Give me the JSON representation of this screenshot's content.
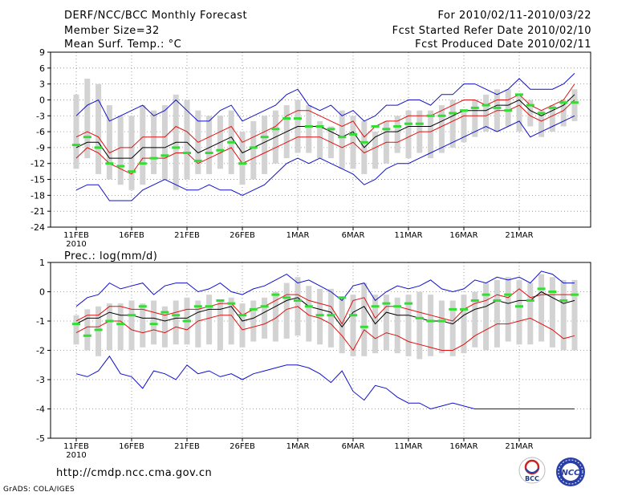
{
  "header": {
    "title": "DERF/NCC/BCC Monthly Forecast",
    "member_size": "Member Size=32",
    "variable": "Mean Surf. Temp.: °C",
    "period": "For 2010/02/11-2010/03/22",
    "started": "Fcst Started Refer Date 2010/02/10",
    "produced": "Fcst Produced Date 2010/02/11"
  },
  "colors": {
    "box": "#d3d3d3",
    "median": "#000000",
    "quartile": "#e01010",
    "extreme": "#1010cc",
    "obs": "#33dd33",
    "grid": "#888888"
  },
  "footer": {
    "url": "http://cmdp.ncc.cma.gov.cn",
    "grads": "GrADS: COLA/IGES",
    "logo_bcc": "BCC",
    "logo_ncc": "NCC"
  },
  "chart_data": [
    {
      "type": "box",
      "title": "Mean Surf. Temp.: °C",
      "ylim": [
        -24,
        9
      ],
      "yticks": [
        9,
        6,
        3,
        0,
        -3,
        -6,
        -9,
        -12,
        -15,
        -18,
        -21,
        -24
      ],
      "xticks": [
        "11FEB",
        "16FEB",
        "21FEB",
        "26FEB",
        "1MAR",
        "6MAR",
        "11MAR",
        "16MAR",
        "21MAR"
      ],
      "xticks_year": "2010",
      "box_hi": [
        1,
        4,
        3,
        -1,
        -3,
        -3,
        -1,
        -2,
        -1,
        1,
        0,
        -2,
        -3,
        -3,
        -2,
        -6,
        -4,
        -3,
        -2,
        -1,
        0,
        -1,
        -4,
        -5,
        -2,
        -3,
        -4,
        -6,
        -4,
        -3,
        -2,
        -2,
        -2,
        -1,
        0,
        -2,
        0,
        1,
        2,
        2,
        1,
        0,
        -2,
        -1,
        0,
        2
      ],
      "box_lo": [
        -13,
        -11,
        -14,
        -15,
        -16,
        -17,
        -16,
        -14,
        -15,
        -17,
        -15,
        -14,
        -14,
        -13,
        -14,
        -16,
        -15,
        -14,
        -12,
        -11,
        -10,
        -10,
        -11,
        -11,
        -13,
        -13,
        -14,
        -13,
        -12,
        -10,
        -11,
        -10,
        -11,
        -10,
        -9,
        -8,
        -7,
        -6,
        -6,
        -5,
        -6,
        -5,
        -7,
        -6,
        -5,
        -4
      ],
      "max": [
        -3,
        -1,
        0,
        -4,
        -3,
        -2,
        -1,
        -3,
        -2,
        0,
        -2,
        -4,
        -4,
        -2,
        -1,
        -4,
        -3,
        -2,
        -1,
        1,
        2,
        -1,
        -2,
        -1,
        -3,
        -2,
        -4,
        -3,
        -1,
        -1,
        0,
        0,
        -1,
        1,
        1,
        3,
        3,
        2,
        1,
        2,
        4,
        2,
        2,
        2,
        3,
        5
      ],
      "q_hi": [
        -7,
        -6,
        -7,
        -10,
        -9,
        -9,
        -7,
        -7,
        -7,
        -5,
        -6,
        -8,
        -7,
        -6,
        -5,
        -8,
        -7,
        -6,
        -5,
        -3,
        -2,
        -2,
        -3,
        -4,
        -5,
        -4,
        -7,
        -5,
        -4,
        -4,
        -3,
        -3,
        -3,
        -2,
        -1,
        0,
        0,
        -1,
        0,
        0,
        1,
        -1,
        -2,
        -1,
        0,
        3
      ],
      "median": [
        -9,
        -8,
        -8,
        -11,
        -11,
        -11,
        -9,
        -9,
        -9,
        -8,
        -8,
        -10,
        -9,
        -8,
        -7,
        -10,
        -9,
        -8,
        -7,
        -6,
        -5,
        -5,
        -5,
        -6,
        -7,
        -6,
        -9,
        -7,
        -6,
        -6,
        -5,
        -5,
        -5,
        -4,
        -3,
        -2,
        -2,
        -2,
        -1,
        -1,
        0,
        -2,
        -3,
        -2,
        -1,
        1
      ],
      "q_lo": [
        -11,
        -9,
        -10,
        -12,
        -13,
        -14,
        -11,
        -11,
        -11,
        -10,
        -10,
        -12,
        -11,
        -10,
        -9,
        -12,
        -11,
        -10,
        -9,
        -8,
        -7,
        -7,
        -7,
        -8,
        -9,
        -8,
        -10,
        -9,
        -8,
        -8,
        -7,
        -6,
        -6,
        -5,
        -4,
        -3,
        -3,
        -3,
        -2,
        -2,
        -1,
        -3,
        -4,
        -3,
        -2,
        0
      ],
      "min": [
        -17,
        -16,
        -16,
        -19,
        -19,
        -19,
        -17,
        -16,
        -15,
        -16,
        -17,
        -17,
        -16,
        -17,
        -17,
        -18,
        -17,
        -16,
        -14,
        -12,
        -11,
        -12,
        -11,
        -12,
        -13,
        -14,
        -16,
        -15,
        -13,
        -12,
        -12,
        -11,
        -10,
        -9,
        -8,
        -7,
        -6,
        -5,
        -6,
        -5,
        -4,
        -7,
        -6,
        -5,
        -4,
        -3
      ],
      "obs": [
        -8.5,
        -7,
        -9,
        -12,
        -12.5,
        -13.5,
        -12,
        -11,
        -10.5,
        -9,
        -10,
        -11.5,
        -10,
        -9.5,
        -8,
        -12,
        -9,
        -7,
        -5.5,
        -3.5,
        -3.5,
        -5,
        -5,
        -5.5,
        -7,
        -6.5,
        -8,
        -5,
        -5.5,
        -5,
        -4.5,
        -4.5,
        -3,
        -3,
        -2.5,
        -2,
        -1.5,
        -1,
        -1.5,
        -2,
        1,
        -1,
        -2.5,
        -1.5,
        -0.5,
        -0.5
      ]
    },
    {
      "type": "box",
      "title": "Prec.: log(mm/d)",
      "ylim": [
        -5,
        1
      ],
      "yticks": [
        1,
        0,
        -1,
        -2,
        -3,
        -4,
        -5
      ],
      "xticks": [
        "11FEB",
        "16FEB",
        "21FEB",
        "26FEB",
        "1MAR",
        "6MAR",
        "11MAR",
        "16MAR",
        "21MAR"
      ],
      "xticks_year": "2010",
      "box_hi": [
        -0.8,
        -0.6,
        -0.5,
        -0.4,
        -0.4,
        -0.3,
        -0.4,
        -0.3,
        -0.5,
        -0.3,
        -0.2,
        -0.3,
        -0.1,
        -0.3,
        -0.2,
        -0.4,
        -0.3,
        -0.2,
        0,
        0.3,
        0.5,
        0.2,
        0.1,
        0.1,
        -0.2,
        -0.1,
        0.3,
        -0.1,
        -0.1,
        -0.2,
        -0.1,
        0,
        -0.1,
        -0.3,
        -0.3,
        -0.1,
        0,
        0.3,
        0.4,
        0.5,
        0.4,
        0.3,
        0.6,
        0.5,
        0.4,
        0.4
      ],
      "box_lo": [
        -1.8,
        -2,
        -2.2,
        -2,
        -2,
        -2,
        -1.9,
        -1.8,
        -1.9,
        -1.8,
        -1.8,
        -1.9,
        -1.8,
        -2,
        -1.8,
        -1.9,
        -1.7,
        -1.6,
        -1.7,
        -1.6,
        -1.5,
        -1.7,
        -1.8,
        -1.9,
        -2.1,
        -2.2,
        -2.2,
        -2.1,
        -2,
        -2.1,
        -2.2,
        -2.3,
        -2.2,
        -2.1,
        -2.2,
        -2.1,
        -1.9,
        -2,
        -1.9,
        -1.7,
        -1.8,
        -1.8,
        -1.7,
        -1.9,
        -2,
        -2
      ],
      "max": [
        -0.5,
        -0.2,
        -0.1,
        0.3,
        0.1,
        0.2,
        0.3,
        -0.1,
        0.2,
        0.3,
        0.3,
        0,
        0.1,
        0.3,
        0,
        -0.1,
        0.1,
        0.2,
        0.4,
        0.6,
        0.3,
        0.4,
        0.2,
        0,
        -0.3,
        0.2,
        0.3,
        -0.3,
        0,
        0.2,
        0.1,
        0.2,
        0.4,
        0.1,
        0,
        0.1,
        0.4,
        0.3,
        0.5,
        0.4,
        0.5,
        0.3,
        0.7,
        0.6,
        0.3,
        0.3
      ],
      "q_hi": [
        -1,
        -0.8,
        -0.8,
        -0.5,
        -0.5,
        -0.6,
        -0.6,
        -0.7,
        -0.8,
        -0.7,
        -0.6,
        -0.6,
        -0.5,
        -0.4,
        -0.4,
        -0.8,
        -0.6,
        -0.5,
        -0.3,
        -0.1,
        -0.1,
        -0.3,
        -0.4,
        -0.5,
        -1.1,
        -0.3,
        -0.2,
        -0.9,
        -0.5,
        -0.5,
        -0.6,
        -0.7,
        -0.8,
        -0.9,
        -1,
        -0.6,
        -0.4,
        -0.3,
        -0.1,
        -0.2,
        0.1,
        -0.2,
        -0.1,
        -0.1,
        -0.1,
        -0.1
      ],
      "median": [
        -1.1,
        -0.9,
        -0.9,
        -0.7,
        -0.8,
        -0.8,
        -0.9,
        -0.9,
        -1,
        -0.9,
        -0.9,
        -0.7,
        -0.6,
        -0.6,
        -0.5,
        -1,
        -0.9,
        -0.7,
        -0.5,
        -0.3,
        -0.2,
        -0.5,
        -0.6,
        -0.7,
        -1.2,
        -0.7,
        -0.5,
        -1.1,
        -0.7,
        -0.8,
        -0.8,
        -0.9,
        -1,
        -1,
        -1.1,
        -0.8,
        -0.6,
        -0.5,
        -0.3,
        -0.4,
        -0.3,
        -0.3,
        0,
        -0.2,
        -0.4,
        -0.3
      ],
      "q_lo": [
        -1.4,
        -1.2,
        -1.2,
        -1,
        -1,
        -1.3,
        -1.4,
        -1.3,
        -1.4,
        -1.2,
        -1.3,
        -1,
        -0.9,
        -0.8,
        -0.8,
        -1.3,
        -1.2,
        -1.1,
        -0.9,
        -0.6,
        -0.5,
        -0.8,
        -0.9,
        -1.1,
        -1.5,
        -2,
        -1.3,
        -1.6,
        -1.4,
        -1.5,
        -1.7,
        -1.8,
        -1.9,
        -2,
        -2,
        -1.8,
        -1.5,
        -1.3,
        -1.1,
        -1.1,
        -1,
        -0.9,
        -1.1,
        -1.3,
        -1.6,
        -1.5
      ],
      "min": [
        -2.8,
        -2.9,
        -2.7,
        -2.2,
        -2.8,
        -2.9,
        -3.3,
        -2.7,
        -2.8,
        -3,
        -2.5,
        -2.8,
        -2.7,
        -2.9,
        -2.8,
        -3,
        -2.8,
        -2.7,
        -2.6,
        -2.5,
        -2.5,
        -2.6,
        -2.8,
        -3.1,
        -2.7,
        -3.4,
        -3.7,
        -3.2,
        -3.3,
        -3.6,
        -3.8,
        -3.8,
        -4,
        -3.9,
        -3.8,
        -3.9,
        -4,
        -4,
        -4,
        -4,
        -4,
        -4,
        -4,
        -4,
        -4,
        -4
      ],
      "obs": [
        -1.1,
        -1.5,
        -1.3,
        -1,
        -1.1,
        -0.8,
        -0.5,
        -1.1,
        -0.7,
        -0.8,
        -1,
        -0.5,
        -0.5,
        -0.3,
        -0.4,
        -0.8,
        -0.6,
        -0.5,
        -0.1,
        -0.2,
        -0.3,
        -0.5,
        -0.8,
        -0.8,
        -0.2,
        -0.8,
        -1.2,
        -0.5,
        -0.4,
        -0.5,
        -0.4,
        -0.9,
        -1,
        -1,
        -0.6,
        -0.6,
        -0.3,
        -0.1,
        -0.3,
        -0.1,
        -0.5,
        -0.3,
        0.1,
        0,
        -0.3,
        -0.1
      ]
    }
  ]
}
